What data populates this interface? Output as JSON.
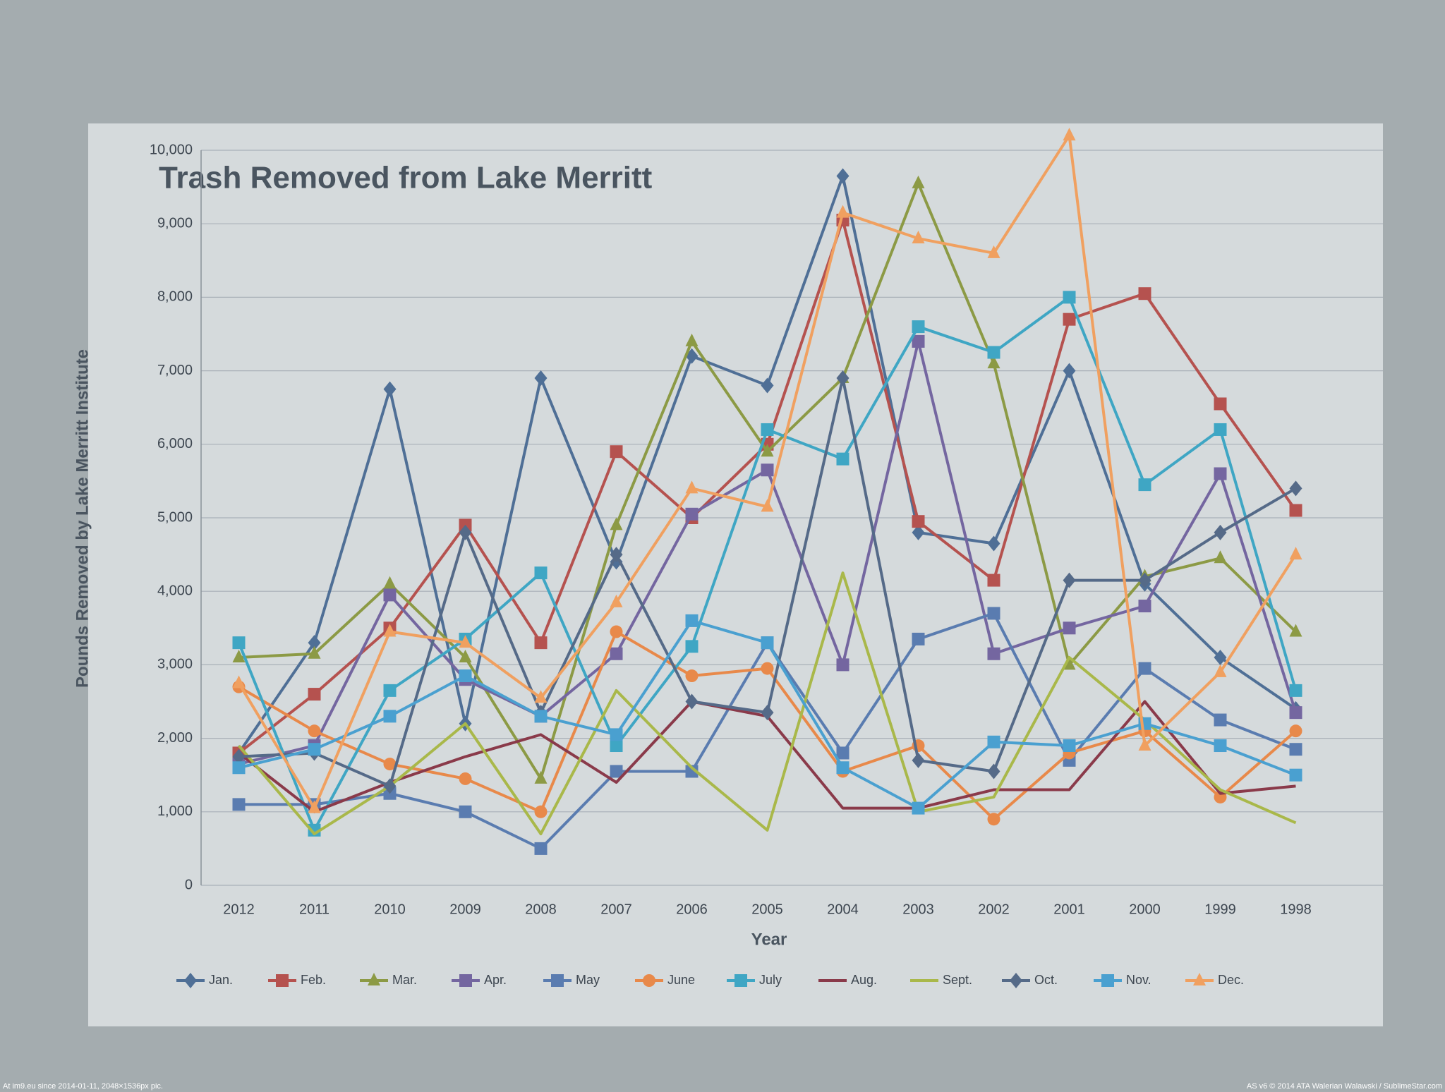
{
  "chart_data": {
    "type": "line",
    "title": "Trash Removed from Lake Merritt",
    "x_label": "Year",
    "y_label": "Pounds Removed by Lake Merritt Institute",
    "categories": [
      "2012",
      "2011",
      "2010",
      "2009",
      "2008",
      "2007",
      "2006",
      "2005",
      "2004",
      "2003",
      "2002",
      "2001",
      "2000",
      "1999",
      "1998"
    ],
    "ylim": [
      0,
      10000
    ],
    "yticks": [
      0,
      {
        "value": 1000,
        "label": "1,000"
      },
      {
        "value": 2000,
        "label": "2,000"
      },
      {
        "value": 3000,
        "label": "3,000"
      },
      {
        "value": 4000,
        "label": "4,000"
      },
      {
        "value": 5000,
        "label": "5,000"
      },
      {
        "value": 6000,
        "label": "6,000"
      },
      {
        "value": 7000,
        "label": "7,000"
      },
      {
        "value": 8000,
        "label": "8,000"
      },
      {
        "value": 9000,
        "label": "9,000"
      },
      {
        "value": 10000,
        "label": "10,000"
      }
    ],
    "grid": true,
    "legend": "bottom",
    "series": [
      {
        "name": "Jan.",
        "color": "#4f6f96",
        "marker": "diamond",
        "values": [
          1800,
          3300,
          6750,
          2200,
          6900,
          4400,
          7200,
          6800,
          9650,
          4800,
          4650,
          7000,
          4100,
          3100,
          2400
        ]
      },
      {
        "name": "Feb.",
        "color": "#b5524f",
        "marker": "square",
        "values": [
          1800,
          2600,
          3500,
          4900,
          3300,
          5900,
          5000,
          6000,
          9050,
          4950,
          4150,
          7700,
          8050,
          6550,
          5100
        ]
      },
      {
        "name": "Mar.",
        "color": "#8c9a45",
        "marker": "triangle",
        "values": [
          3100,
          3150,
          4100,
          3100,
          1450,
          4900,
          7400,
          5900,
          6900,
          9550,
          7100,
          3000,
          4200,
          4450,
          3450
        ]
      },
      {
        "name": "Apr.",
        "color": "#7466a0",
        "marker": "square",
        "values": [
          1650,
          1900,
          3950,
          2800,
          2300,
          3150,
          5050,
          5650,
          3000,
          7400,
          3150,
          3500,
          3800,
          5600,
          2350
        ]
      },
      {
        "name": "May",
        "color": "#5a7cb0",
        "marker": "square",
        "values": [
          1100,
          1100,
          1250,
          1000,
          500,
          1550,
          1550,
          3300,
          1800,
          3350,
          3700,
          1700,
          2950,
          2250,
          1850
        ]
      },
      {
        "name": "June",
        "color": "#e8894a",
        "marker": "circle",
        "values": [
          2700,
          2100,
          1650,
          1450,
          1000,
          3450,
          2850,
          2950,
          1550,
          1900,
          900,
          1800,
          2100,
          1200,
          2100
        ]
      },
      {
        "name": "July",
        "color": "#3fa6c4",
        "marker": "square",
        "values": [
          3300,
          750,
          2650,
          3350,
          4250,
          1900,
          3250,
          6200,
          5800,
          7600,
          7250,
          8000,
          5450,
          6200,
          2650
        ]
      },
      {
        "name": "Aug.",
        "color": "#8a3a4a",
        "marker": "none",
        "values": [
          1800,
          1000,
          1400,
          1750,
          2050,
          1400,
          2500,
          2300,
          1050,
          1050,
          1300,
          1300,
          2500,
          1250,
          1350
        ]
      },
      {
        "name": "Sept.",
        "color": "#a9b84a",
        "marker": "none",
        "values": [
          1900,
          700,
          1350,
          2200,
          700,
          2650,
          1600,
          750,
          4250,
          1000,
          1200,
          3100,
          2250,
          1300,
          850
        ]
      },
      {
        "name": "Oct.",
        "color": "#556a88",
        "marker": "diamond",
        "values": [
          1750,
          1800,
          1350,
          4800,
          2350,
          4500,
          2500,
          2350,
          6900,
          1700,
          1550,
          4150,
          4150,
          4800,
          5400
        ]
      },
      {
        "name": "Nov.",
        "color": "#4aa0d0",
        "marker": "square",
        "values": [
          1600,
          1850,
          2300,
          2850,
          2300,
          2050,
          3600,
          3300,
          1600,
          1050,
          1950,
          1900,
          2200,
          1900,
          1500
        ]
      },
      {
        "name": "Dec.",
        "color": "#f0a060",
        "marker": "triangle",
        "values": [
          2750,
          1050,
          3450,
          3300,
          2550,
          3850,
          5400,
          5150,
          9150,
          8800,
          8600,
          10200,
          1900,
          2900,
          4500
        ]
      }
    ]
  },
  "watermark": {
    "left": "At im9.eu since 2014-01-11, 2048×1536px pic.",
    "right": "AS v6 © 2014 ATA Walerian Walawski / SublimeStar.com"
  }
}
